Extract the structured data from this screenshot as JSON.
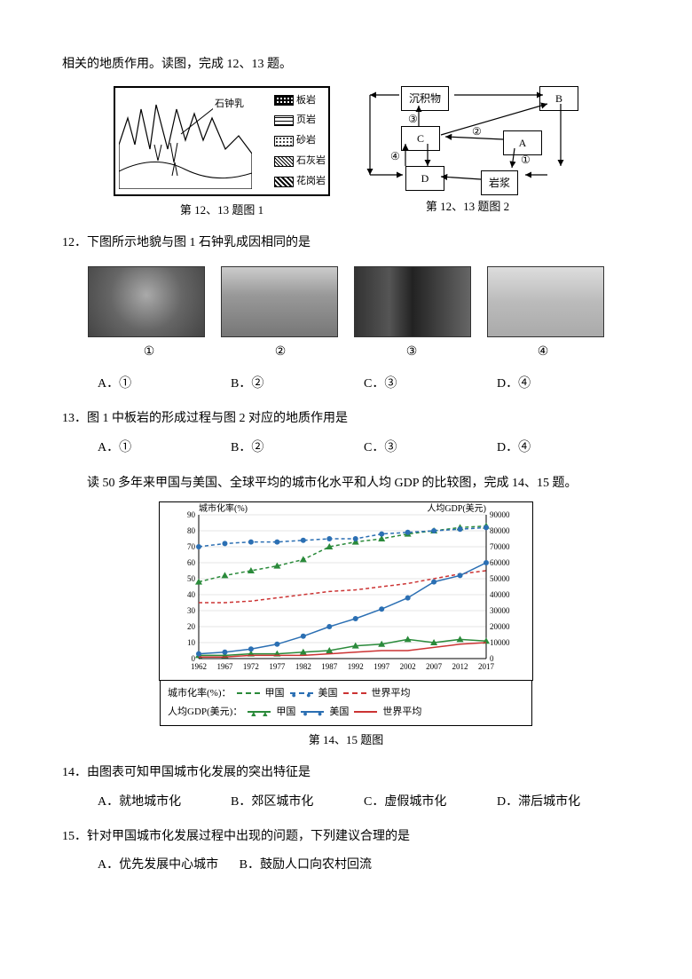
{
  "intro": "相关的地质作用。读图，完成 12、13 题。",
  "fig1": {
    "callout": "石钟乳",
    "legend": [
      "板岩",
      "页岩",
      "砂岩",
      "石灰岩",
      "花岗岩"
    ],
    "caption": "第 12、13 题图 1"
  },
  "fig2": {
    "boxes": {
      "sediment": "沉积物",
      "A": "A",
      "B": "B",
      "C": "C",
      "D": "D",
      "magma": "岩浆"
    },
    "labels": {
      "1": "①",
      "2": "②",
      "3": "③",
      "4": "④"
    },
    "caption": "第 12、13 题图 2"
  },
  "q12": {
    "stem": "12．下图所示地貌与图 1 石钟乳成因相同的是",
    "photo_labels": [
      "①",
      "②",
      "③",
      "④"
    ],
    "choices": [
      "A．①",
      "B．②",
      "C．③",
      "D．④"
    ]
  },
  "q13": {
    "stem": "13．图 1 中板岩的形成过程与图 2 对应的地质作用是",
    "choices": [
      "A．①",
      "B．②",
      "C．③",
      "D．④"
    ]
  },
  "context2": "读 50 多年来甲国与美国、全球平均的城市化水平和人均 GDP 的比较图，完成 14、15 题。",
  "chart": {
    "y_left_label": "城市化率(%)",
    "y_right_label": "人均GDP(美元)",
    "y_left_ticks": [
      0,
      10,
      20,
      30,
      40,
      50,
      60,
      70,
      80,
      90
    ],
    "y_right_ticks": [
      0,
      10000,
      20000,
      30000,
      40000,
      50000,
      60000,
      70000,
      80000,
      90000
    ],
    "x_ticks": [
      1962,
      1967,
      1972,
      1977,
      1982,
      1987,
      1992,
      1997,
      2002,
      2007,
      2012,
      2017
    ],
    "series": {
      "jia_urb": {
        "color": "#2a8a3a",
        "marker": "tri",
        "dash": true,
        "values": [
          48,
          52,
          55,
          58,
          62,
          70,
          73,
          75,
          78,
          80,
          82,
          83
        ]
      },
      "us_urb": {
        "color": "#2b6fb3",
        "marker": "cir",
        "dash": true,
        "values": [
          70,
          72,
          73,
          73,
          74,
          75,
          75,
          78,
          79,
          80,
          81,
          82
        ]
      },
      "world_urb": {
        "color": "#c33",
        "marker": null,
        "dash": true,
        "values": [
          35,
          35,
          36,
          38,
          40,
          42,
          43,
          45,
          47,
          50,
          53,
          55
        ]
      },
      "jia_gdp": {
        "color": "#2a8a3a",
        "marker": "tri",
        "dash": false,
        "values": [
          2,
          2,
          3,
          3,
          4,
          5,
          8,
          9,
          12,
          10,
          12,
          11
        ]
      },
      "us_gdp": {
        "color": "#2b6fb3",
        "marker": "cir",
        "dash": false,
        "values": [
          3,
          4,
          6,
          9,
          14,
          20,
          25,
          31,
          38,
          48,
          52,
          60
        ]
      },
      "world_gdp": {
        "color": "#c33",
        "marker": null,
        "dash": false,
        "values": [
          1,
          1,
          2,
          2,
          2,
          3,
          4,
          5,
          5,
          7,
          9,
          10
        ]
      }
    },
    "legend_row1": [
      "城市化率(%)：",
      "甲国",
      "美国",
      "世界平均"
    ],
    "legend_row2": [
      "人均GDP(美元)：",
      "甲国",
      "美国",
      "世界平均"
    ],
    "caption": "第 14、15 题图"
  },
  "q14": {
    "stem": "14．由图表可知甲国城市化发展的突出特征是",
    "choices": [
      "A．就地城市化",
      "B．郊区城市化",
      "C．虚假城市化",
      "D．滞后城市化"
    ]
  },
  "q15": {
    "stem": "15．针对甲国城市化发展过程中出现的问题，下列建议合理的是",
    "choices": [
      "A．优先发展中心城市",
      "B．鼓励人口向农村回流"
    ]
  }
}
